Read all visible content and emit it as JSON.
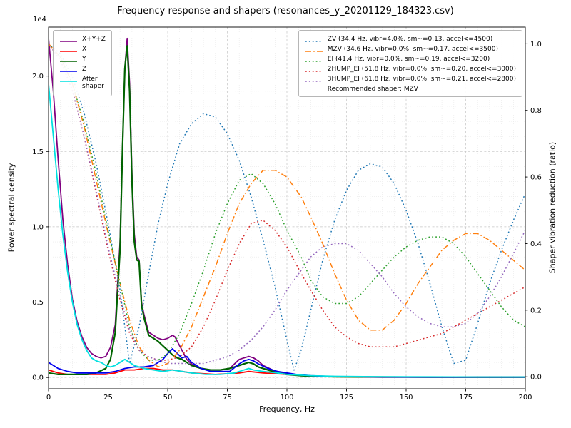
{
  "title": "Frequency response and shapers (resonances_y_20201129_184323.csv)",
  "axes": {
    "x": {
      "label": "Frequency, Hz",
      "min": 0,
      "max": 200,
      "ticks": [
        0,
        25,
        50,
        75,
        100,
        125,
        150,
        175,
        200
      ]
    },
    "y_left": {
      "label": "Power spectral density",
      "offset_label": "1e4",
      "scale": 10000,
      "min": 0,
      "max": 2.3,
      "ticks": [
        "0.0",
        "0.5",
        "1.0",
        "1.5",
        "2.0"
      ],
      "tick_values": [
        0,
        0.5,
        1.0,
        1.5,
        2.0
      ]
    },
    "y_right": {
      "label": "Shaper vibration reduction (ratio)",
      "min": 0,
      "max": 1.0,
      "ticks": [
        "0.0",
        "0.2",
        "0.4",
        "0.6",
        "0.8",
        "1.0"
      ],
      "tick_values": [
        0,
        0.2,
        0.4,
        0.6,
        0.8,
        1.0
      ]
    }
  },
  "legend_left": {
    "items": [
      {
        "label": "X+Y+Z",
        "color": "#800080",
        "style": "solid"
      },
      {
        "label": "X",
        "color": "#ff0000",
        "style": "solid"
      },
      {
        "label": "Y",
        "color": "#006400",
        "style": "solid"
      },
      {
        "label": "Z",
        "color": "#0000ee",
        "style": "solid"
      },
      {
        "label": "After\nshaper",
        "color": "#00e0e0",
        "style": "solid"
      }
    ]
  },
  "legend_right": {
    "items": [
      {
        "label": "ZV (34.4 Hz, vibr=4.0%, sm~=0.13, accel<=4500)",
        "color": "#1f77b4",
        "style": "dotted"
      },
      {
        "label": "MZV (34.6 Hz, vibr=0.0%, sm~=0.17, accel<=3500)",
        "color": "#ff7f0e",
        "style": "dashdot"
      },
      {
        "label": "EI (41.4 Hz, vibr=0.0%, sm~=0.19, accel<=3200)",
        "color": "#2ca02c",
        "style": "dotted"
      },
      {
        "label": "2HUMP_EI (51.8 Hz, vibr=0.0%, sm~=0.20, accel<=3000)",
        "color": "#d62728",
        "style": "dotted"
      },
      {
        "label": "3HUMP_EI (61.8 Hz, vibr=0.0%, sm~=0.21, accel<=2800)",
        "color": "#9467bd",
        "style": "dotted"
      }
    ],
    "note": "Recommended shaper: MZV"
  },
  "chart_data": {
    "type": "line",
    "x_axis": "Frequency, Hz",
    "x_range": [
      0,
      200
    ],
    "y_left_label": "Power spectral density (x 1e4)",
    "y_right_label": "Shaper vibration reduction (ratio)",
    "series": [
      {
        "name": "X+Y+Z",
        "axis": "left",
        "color": "#800080",
        "style": "solid",
        "x": [
          0,
          2,
          4,
          6,
          8,
          10,
          12,
          14,
          16,
          18,
          20,
          22,
          24,
          26,
          28,
          30,
          31,
          32,
          33,
          34,
          35,
          36,
          37,
          38,
          39,
          40,
          42,
          44,
          46,
          48,
          50,
          51,
          52,
          53,
          54,
          56,
          58,
          60,
          62,
          64,
          68,
          72,
          76,
          80,
          82,
          84,
          86,
          88,
          90,
          94,
          98,
          102,
          106,
          110,
          120,
          140,
          160,
          180,
          200
        ],
        "y": [
          2.25,
          1.9,
          1.45,
          1.05,
          0.75,
          0.52,
          0.37,
          0.27,
          0.2,
          0.16,
          0.14,
          0.13,
          0.14,
          0.2,
          0.35,
          0.9,
          1.5,
          2.05,
          2.25,
          1.95,
          1.35,
          0.95,
          0.8,
          0.78,
          0.5,
          0.42,
          0.3,
          0.28,
          0.26,
          0.25,
          0.26,
          0.27,
          0.28,
          0.27,
          0.24,
          0.18,
          0.12,
          0.09,
          0.07,
          0.06,
          0.05,
          0.05,
          0.06,
          0.12,
          0.13,
          0.14,
          0.13,
          0.11,
          0.08,
          0.05,
          0.03,
          0.02,
          0.015,
          0.01,
          0.005,
          0.003,
          0.003,
          0.002,
          0.002
        ]
      },
      {
        "name": "X",
        "axis": "left",
        "color": "#ff0000",
        "style": "solid",
        "x": [
          0,
          4,
          8,
          12,
          16,
          20,
          24,
          28,
          32,
          36,
          40,
          44,
          48,
          52,
          56,
          60,
          70,
          80,
          84,
          90,
          100,
          110,
          120,
          140,
          160,
          180,
          200
        ],
        "y": [
          0.05,
          0.03,
          0.02,
          0.02,
          0.02,
          0.02,
          0.02,
          0.03,
          0.05,
          0.05,
          0.06,
          0.06,
          0.05,
          0.05,
          0.04,
          0.03,
          0.02,
          0.03,
          0.04,
          0.03,
          0.02,
          0.01,
          0.005,
          0.003,
          0.002,
          0.002,
          0.002
        ]
      },
      {
        "name": "Y",
        "axis": "left",
        "color": "#006400",
        "style": "solid",
        "x": [
          0,
          4,
          8,
          12,
          16,
          20,
          24,
          26,
          28,
          30,
          31,
          32,
          33,
          34,
          35,
          36,
          37,
          38,
          39,
          40,
          42,
          44,
          46,
          48,
          50,
          52,
          54,
          56,
          58,
          60,
          64,
          68,
          72,
          76,
          80,
          82,
          84,
          86,
          88,
          92,
          96,
          100,
          106,
          112,
          120,
          140,
          160,
          180,
          200
        ],
        "y": [
          0.03,
          0.02,
          0.02,
          0.02,
          0.02,
          0.03,
          0.06,
          0.12,
          0.3,
          0.85,
          1.5,
          2.05,
          2.2,
          1.9,
          1.3,
          0.9,
          0.78,
          0.77,
          0.48,
          0.4,
          0.28,
          0.26,
          0.24,
          0.21,
          0.18,
          0.15,
          0.13,
          0.12,
          0.1,
          0.08,
          0.06,
          0.05,
          0.05,
          0.06,
          0.08,
          0.09,
          0.1,
          0.09,
          0.07,
          0.05,
          0.03,
          0.02,
          0.012,
          0.008,
          0.005,
          0.003,
          0.002,
          0.002,
          0.002
        ]
      },
      {
        "name": "Z",
        "axis": "left",
        "color": "#0000ee",
        "style": "solid",
        "x": [
          0,
          4,
          8,
          12,
          16,
          20,
          24,
          28,
          32,
          36,
          40,
          44,
          48,
          50,
          52,
          54,
          56,
          58,
          60,
          64,
          68,
          72,
          76,
          80,
          82,
          84,
          86,
          88,
          92,
          96,
          100,
          104,
          110,
          120,
          140,
          160,
          180,
          200
        ],
        "y": [
          0.1,
          0.06,
          0.04,
          0.03,
          0.03,
          0.03,
          0.03,
          0.04,
          0.06,
          0.07,
          0.07,
          0.08,
          0.12,
          0.16,
          0.19,
          0.16,
          0.13,
          0.14,
          0.1,
          0.06,
          0.04,
          0.04,
          0.04,
          0.09,
          0.11,
          0.12,
          0.11,
          0.09,
          0.06,
          0.04,
          0.03,
          0.02,
          0.012,
          0.006,
          0.003,
          0.002,
          0.002,
          0.002
        ]
      },
      {
        "name": "After shaper",
        "axis": "left",
        "color": "#00e0e0",
        "style": "solid",
        "x": [
          0,
          2,
          4,
          6,
          8,
          10,
          12,
          14,
          16,
          18,
          20,
          22,
          24,
          26,
          28,
          30,
          32,
          34,
          36,
          38,
          40,
          44,
          48,
          52,
          56,
          60,
          66,
          72,
          78,
          82,
          84,
          86,
          90,
          96,
          100,
          110,
          120,
          140,
          160,
          180,
          200
        ],
        "y": [
          1.95,
          1.6,
          1.25,
          0.95,
          0.7,
          0.5,
          0.35,
          0.25,
          0.18,
          0.13,
          0.11,
          0.1,
          0.08,
          0.07,
          0.08,
          0.1,
          0.12,
          0.1,
          0.08,
          0.07,
          0.06,
          0.05,
          0.04,
          0.05,
          0.04,
          0.03,
          0.02,
          0.02,
          0.03,
          0.05,
          0.06,
          0.05,
          0.04,
          0.03,
          0.02,
          0.012,
          0.008,
          0.005,
          0.004,
          0.003,
          0.003
        ]
      },
      {
        "name": "ZV",
        "axis": "right",
        "color": "#1f77b4",
        "style": "dotted",
        "x": [
          0,
          5,
          10,
          15,
          20,
          25,
          30,
          34,
          38,
          42,
          46,
          50,
          55,
          60,
          65,
          70,
          75,
          80,
          85,
          90,
          95,
          100,
          103,
          106,
          110,
          115,
          120,
          125,
          130,
          135,
          140,
          145,
          150,
          155,
          160,
          165,
          170,
          175,
          180,
          185,
          190,
          195,
          200
        ],
        "y": [
          1.0,
          0.97,
          0.9,
          0.79,
          0.64,
          0.46,
          0.26,
          0.04,
          0.15,
          0.31,
          0.46,
          0.58,
          0.7,
          0.76,
          0.79,
          0.78,
          0.73,
          0.65,
          0.54,
          0.41,
          0.27,
          0.11,
          0.02,
          0.08,
          0.2,
          0.35,
          0.47,
          0.56,
          0.62,
          0.64,
          0.63,
          0.58,
          0.5,
          0.4,
          0.28,
          0.15,
          0.04,
          0.05,
          0.16,
          0.28,
          0.38,
          0.47,
          0.55
        ]
      },
      {
        "name": "MZV",
        "axis": "right",
        "color": "#ff7f0e",
        "style": "dashdot",
        "x": [
          0,
          5,
          10,
          15,
          20,
          25,
          30,
          34,
          38,
          42,
          46,
          50,
          55,
          60,
          65,
          70,
          75,
          80,
          85,
          90,
          95,
          100,
          103,
          106,
          110,
          115,
          120,
          125,
          130,
          135,
          140,
          145,
          150,
          155,
          160,
          165,
          170,
          175,
          180,
          185,
          190,
          195,
          200
        ],
        "y": [
          1.0,
          0.96,
          0.88,
          0.75,
          0.59,
          0.43,
          0.28,
          0.17,
          0.09,
          0.05,
          0.03,
          0.04,
          0.08,
          0.15,
          0.24,
          0.33,
          0.43,
          0.52,
          0.58,
          0.62,
          0.62,
          0.6,
          0.57,
          0.54,
          0.48,
          0.4,
          0.31,
          0.23,
          0.17,
          0.14,
          0.14,
          0.17,
          0.22,
          0.28,
          0.33,
          0.38,
          0.41,
          0.43,
          0.43,
          0.41,
          0.38,
          0.35,
          0.32
        ]
      },
      {
        "name": "EI",
        "axis": "right",
        "color": "#2ca02c",
        "style": "dotted",
        "x": [
          0,
          5,
          10,
          15,
          20,
          25,
          30,
          34,
          38,
          42,
          46,
          50,
          55,
          60,
          65,
          70,
          75,
          80,
          85,
          90,
          95,
          100,
          103,
          106,
          110,
          115,
          120,
          125,
          130,
          135,
          140,
          145,
          150,
          155,
          160,
          165,
          170,
          175,
          180,
          185,
          190,
          195,
          200
        ],
        "y": [
          1.0,
          0.96,
          0.88,
          0.76,
          0.61,
          0.44,
          0.28,
          0.15,
          0.08,
          0.05,
          0.05,
          0.07,
          0.13,
          0.22,
          0.32,
          0.43,
          0.52,
          0.59,
          0.61,
          0.58,
          0.52,
          0.44,
          0.4,
          0.36,
          0.29,
          0.24,
          0.22,
          0.22,
          0.24,
          0.28,
          0.32,
          0.36,
          0.39,
          0.41,
          0.42,
          0.42,
          0.4,
          0.36,
          0.31,
          0.26,
          0.21,
          0.17,
          0.15
        ]
      },
      {
        "name": "2HUMP_EI",
        "axis": "right",
        "color": "#d62728",
        "style": "dotted",
        "x": [
          0,
          5,
          10,
          15,
          20,
          25,
          30,
          34,
          38,
          42,
          46,
          50,
          55,
          60,
          65,
          70,
          75,
          80,
          85,
          90,
          95,
          100,
          103,
          106,
          110,
          115,
          120,
          125,
          130,
          135,
          140,
          145,
          150,
          155,
          160,
          165,
          170,
          175,
          180,
          185,
          190,
          195,
          200
        ],
        "y": [
          1.0,
          0.95,
          0.86,
          0.72,
          0.55,
          0.38,
          0.23,
          0.13,
          0.08,
          0.06,
          0.05,
          0.05,
          0.06,
          0.09,
          0.15,
          0.23,
          0.32,
          0.4,
          0.46,
          0.47,
          0.44,
          0.39,
          0.35,
          0.31,
          0.26,
          0.2,
          0.15,
          0.12,
          0.1,
          0.09,
          0.09,
          0.09,
          0.1,
          0.11,
          0.12,
          0.13,
          0.15,
          0.17,
          0.19,
          0.21,
          0.23,
          0.25,
          0.27
        ]
      },
      {
        "name": "3HUMP_EI",
        "axis": "right",
        "color": "#9467bd",
        "style": "dotted",
        "x": [
          0,
          5,
          10,
          15,
          20,
          25,
          30,
          34,
          38,
          42,
          46,
          50,
          55,
          60,
          65,
          70,
          75,
          80,
          85,
          90,
          95,
          100,
          103,
          106,
          110,
          115,
          120,
          125,
          130,
          135,
          140,
          145,
          150,
          155,
          160,
          165,
          170,
          175,
          180,
          185,
          190,
          195,
          200
        ],
        "y": [
          1.0,
          0.95,
          0.86,
          0.72,
          0.56,
          0.39,
          0.24,
          0.14,
          0.08,
          0.06,
          0.05,
          0.04,
          0.04,
          0.04,
          0.04,
          0.05,
          0.06,
          0.08,
          0.11,
          0.15,
          0.2,
          0.26,
          0.29,
          0.32,
          0.36,
          0.39,
          0.4,
          0.4,
          0.38,
          0.34,
          0.3,
          0.25,
          0.21,
          0.18,
          0.16,
          0.15,
          0.15,
          0.16,
          0.19,
          0.24,
          0.3,
          0.37,
          0.44
        ]
      }
    ]
  }
}
